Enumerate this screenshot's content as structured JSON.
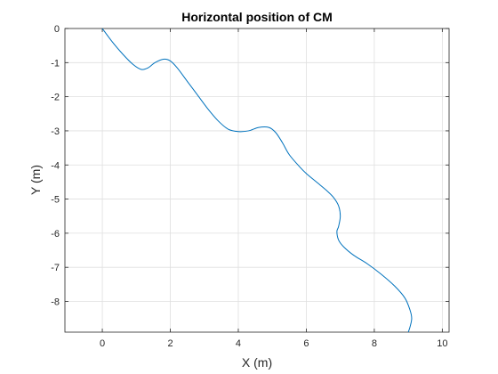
{
  "chart_data": {
    "type": "line",
    "title": "Horizontal position of CM",
    "xlabel": "X (m)",
    "ylabel": "Y (m)",
    "xlim": [
      -1.1,
      10.2
    ],
    "ylim": [
      -8.9,
      0
    ],
    "xticks": [
      0,
      2,
      4,
      6,
      8,
      10
    ],
    "yticks": [
      0,
      -1,
      -2,
      -3,
      -4,
      -5,
      -6,
      -7,
      -8
    ],
    "grid": true,
    "box": true,
    "series": [
      {
        "color": "#0072bd",
        "x": [
          0,
          0.3,
          0.6,
          0.9,
          1.15,
          1.35,
          1.55,
          1.8,
          2.0,
          2.2,
          2.5,
          2.8,
          3.1,
          3.4,
          3.7,
          4.0,
          4.3,
          4.6,
          4.9,
          5.1,
          5.3,
          5.5,
          5.8,
          6.0,
          6.3,
          6.6,
          6.8,
          6.95,
          7.0,
          6.95,
          6.9,
          6.95,
          7.1,
          7.4,
          7.8,
          8.2,
          8.6,
          8.9,
          9.05,
          9.1,
          9.05,
          9.0
        ],
        "y": [
          0,
          -0.4,
          -0.75,
          -1.05,
          -1.2,
          -1.15,
          -1.0,
          -0.9,
          -0.95,
          -1.15,
          -1.55,
          -1.95,
          -2.35,
          -2.7,
          -2.95,
          -3.02,
          -3.0,
          -2.9,
          -2.9,
          -3.05,
          -3.35,
          -3.7,
          -4.05,
          -4.25,
          -4.5,
          -4.75,
          -4.95,
          -5.2,
          -5.5,
          -5.8,
          -5.95,
          -6.2,
          -6.4,
          -6.65,
          -6.9,
          -7.2,
          -7.55,
          -7.9,
          -8.25,
          -8.5,
          -8.75,
          -8.9
        ]
      }
    ]
  }
}
